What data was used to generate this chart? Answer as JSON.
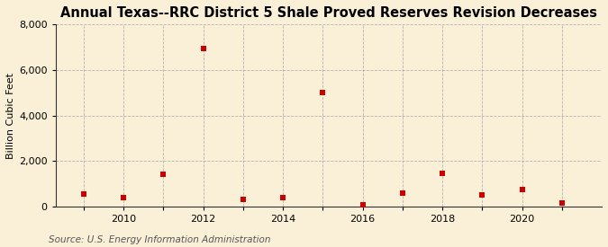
{
  "title": "Annual Texas--RRC District 5 Shale Proved Reserves Revision Decreases",
  "ylabel": "Billion Cubic Feet",
  "source": "Source: U.S. Energy Information Administration",
  "years": [
    2009,
    2010,
    2011,
    2012,
    2013,
    2014,
    2015,
    2016,
    2017,
    2018,
    2019,
    2020,
    2021
  ],
  "values": [
    550,
    380,
    1400,
    6950,
    300,
    400,
    5000,
    80,
    580,
    1450,
    500,
    750,
    130
  ],
  "marker_color": "#cc0000",
  "background_color": "#faf0d8",
  "plot_bg_color": "#faf0d8",
  "ylim": [
    0,
    8000
  ],
  "yticks": [
    0,
    2000,
    4000,
    6000,
    8000
  ],
  "grid_color": "#999999",
  "title_fontsize": 10.5,
  "ylabel_fontsize": 8,
  "tick_fontsize": 8,
  "source_fontsize": 7.5,
  "xlim_left": 2008.3,
  "xlim_right": 2022.0,
  "labeled_years": [
    2010,
    2012,
    2014,
    2016,
    2018,
    2020
  ]
}
